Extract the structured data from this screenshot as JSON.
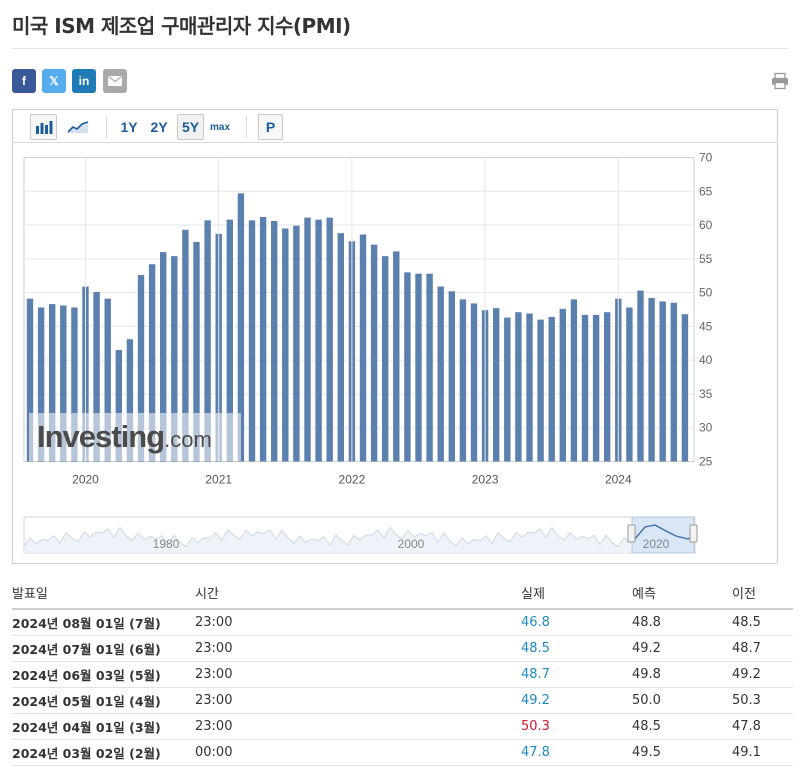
{
  "page_title": "미국 ISM 제조업 구매관리자 지수(PMI)",
  "share": {
    "facebook": "f",
    "twitter": "𝕏",
    "linkedin": "in"
  },
  "toolbar": {
    "range_1y": "1Y",
    "range_2y": "2Y",
    "range_5y": "5Y",
    "range_max": "max",
    "p": "P",
    "selected_range": "5Y"
  },
  "watermark": {
    "brand": "Investing",
    "suffix": ".com"
  },
  "colors": {
    "bar": "#5b80ad",
    "accent": "#1c5c9a",
    "actual_blue": "#1e8ac4",
    "actual_red": "#d0172a"
  },
  "chart_data": {
    "type": "bar",
    "title": "",
    "xlabel": "",
    "ylabel": "",
    "ylim": [
      25,
      70
    ],
    "y_ticks": [
      25,
      30,
      35,
      40,
      45,
      50,
      55,
      60,
      65,
      70
    ],
    "x_year_labels": [
      "2020",
      "2021",
      "2022",
      "2023",
      "2024"
    ],
    "grid": true,
    "categories": [
      "2019-08",
      "2019-09",
      "2019-10",
      "2019-11",
      "2019-12",
      "2020-01",
      "2020-02",
      "2020-03",
      "2020-04",
      "2020-05",
      "2020-06",
      "2020-07",
      "2020-08",
      "2020-09",
      "2020-10",
      "2020-11",
      "2020-12",
      "2021-01",
      "2021-02",
      "2021-03",
      "2021-04",
      "2021-05",
      "2021-06",
      "2021-07",
      "2021-08",
      "2021-09",
      "2021-10",
      "2021-11",
      "2021-12",
      "2022-01",
      "2022-02",
      "2022-03",
      "2022-04",
      "2022-05",
      "2022-06",
      "2022-07",
      "2022-08",
      "2022-09",
      "2022-10",
      "2022-11",
      "2022-12",
      "2023-01",
      "2023-02",
      "2023-03",
      "2023-04",
      "2023-05",
      "2023-06",
      "2023-07",
      "2023-08",
      "2023-09",
      "2023-10",
      "2023-11",
      "2023-12",
      "2024-01",
      "2024-02",
      "2024-03",
      "2024-04",
      "2024-05",
      "2024-06",
      "2024-07"
    ],
    "values": [
      49.1,
      47.8,
      48.3,
      48.1,
      47.8,
      50.9,
      50.1,
      49.1,
      41.5,
      43.1,
      52.6,
      54.2,
      56.0,
      55.4,
      59.3,
      57.5,
      60.7,
      58.7,
      60.8,
      64.7,
      60.7,
      61.2,
      60.6,
      59.5,
      59.9,
      61.1,
      60.8,
      61.1,
      58.8,
      57.6,
      58.6,
      57.1,
      55.4,
      56.1,
      53.0,
      52.8,
      52.8,
      50.9,
      50.2,
      49.0,
      48.4,
      47.4,
      47.7,
      46.3,
      47.1,
      46.9,
      46.0,
      46.4,
      47.6,
      49.0,
      46.7,
      46.7,
      47.1,
      49.1,
      47.8,
      50.3,
      49.2,
      48.7,
      48.5,
      46.8
    ]
  },
  "navigator": {
    "labels": [
      "1980",
      "2000",
      "2020"
    ]
  },
  "table": {
    "headers": {
      "date": "발표일",
      "time": "시간",
      "actual": "실제",
      "forecast": "예측",
      "previous": "이전"
    },
    "rows": [
      {
        "date": "2024년 08월 01일 (7월)",
        "time": "23:00",
        "actual": "46.8",
        "actual_color": "blue",
        "forecast": "48.8",
        "previous": "48.5"
      },
      {
        "date": "2024년 07월 01일 (6월)",
        "time": "23:00",
        "actual": "48.5",
        "actual_color": "blue",
        "forecast": "49.2",
        "previous": "48.7"
      },
      {
        "date": "2024년 06월 03일 (5월)",
        "time": "23:00",
        "actual": "48.7",
        "actual_color": "blue",
        "forecast": "49.8",
        "previous": "49.2"
      },
      {
        "date": "2024년 05월 01일 (4월)",
        "time": "23:00",
        "actual": "49.2",
        "actual_color": "blue",
        "forecast": "50.0",
        "previous": "50.3"
      },
      {
        "date": "2024년 04월 01일 (3월)",
        "time": "23:00",
        "actual": "50.3",
        "actual_color": "red",
        "forecast": "48.5",
        "previous": "47.8"
      },
      {
        "date": "2024년 03월 02일 (2월)",
        "time": "00:00",
        "actual": "47.8",
        "actual_color": "blue",
        "forecast": "49.5",
        "previous": "49.1"
      }
    ]
  }
}
